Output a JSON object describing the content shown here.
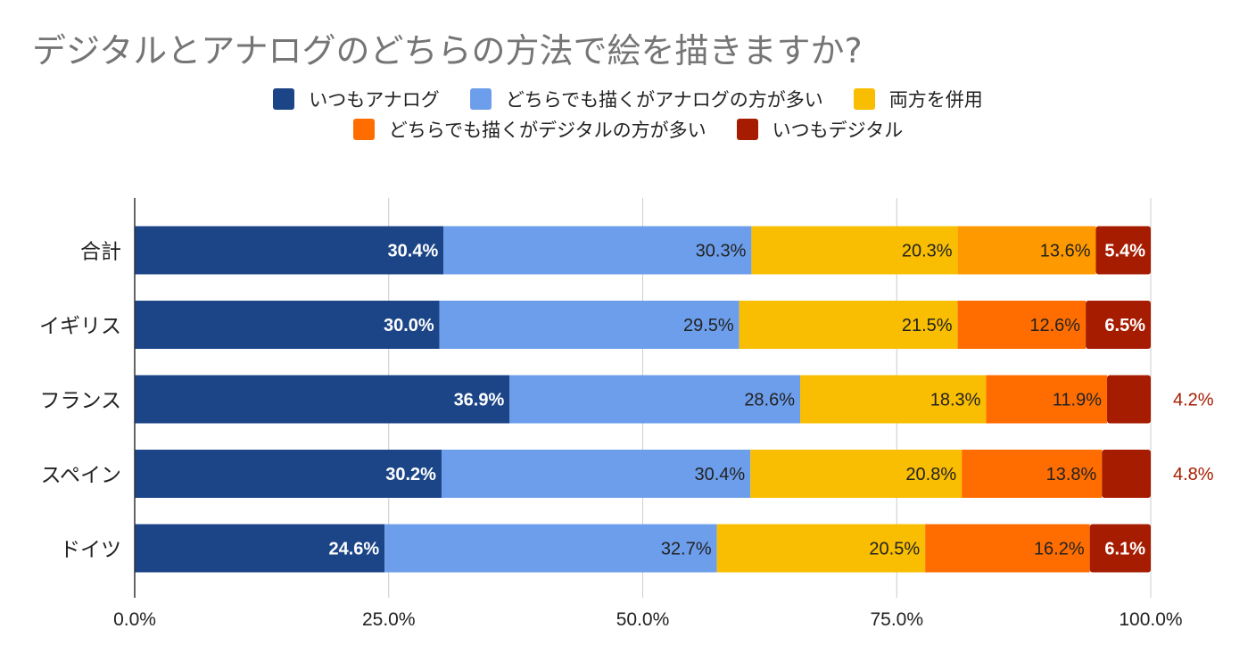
{
  "chart_data": {
    "type": "bar",
    "orientation": "horizontal",
    "stacked": true,
    "title": "デジタルとアナログのどちらの方法で絵を描きますか?",
    "categories": [
      "合計",
      "イギリス",
      "フランス",
      "スペイン",
      "ドイツ"
    ],
    "series": [
      {
        "name": "いつもアナログ",
        "color": "#1c4587",
        "label_color": "#ffffff",
        "values": [
          30.4,
          30.0,
          36.9,
          30.2,
          24.6
        ]
      },
      {
        "name": "どちらでも描くがアナログの方が多い",
        "color": "#6d9eeb",
        "label_color": "#222222",
        "values": [
          30.3,
          29.5,
          28.6,
          30.4,
          32.7
        ]
      },
      {
        "name": "両方を併用",
        "color": "#f9be02",
        "label_color": "#222222",
        "values": [
          20.3,
          21.5,
          18.3,
          20.8,
          20.5
        ]
      },
      {
        "name": "どちらでも描くがデジタルの方が多い",
        "color": "#ff6d01",
        "label_color": "#222222",
        "values": [
          13.6,
          12.6,
          11.9,
          13.8,
          16.2
        ]
      },
      {
        "name": "いつもデジタル",
        "color": "#a61c00",
        "label_color": "#ffffff",
        "values": [
          5.4,
          6.5,
          4.2,
          4.8,
          6.1
        ]
      }
    ],
    "labels": [
      [
        "30.4%",
        "30.3%",
        "20.3%",
        "13.6%",
        "5.4%"
      ],
      [
        "30.0%",
        "29.5%",
        "21.5%",
        "12.6%",
        "6.5%"
      ],
      [
        "36.9%",
        "28.6%",
        "18.3%",
        "11.9%",
        "4.2%"
      ],
      [
        "30.2%",
        "30.4%",
        "20.8%",
        "13.8%",
        "4.8%"
      ],
      [
        "24.6%",
        "32.7%",
        "20.5%",
        "16.2%",
        "6.1%"
      ]
    ],
    "outside_labels": [
      [
        false,
        false,
        false,
        false,
        false
      ],
      [
        false,
        false,
        false,
        false,
        false
      ],
      [
        false,
        false,
        false,
        false,
        true
      ],
      [
        false,
        false,
        false,
        false,
        true
      ],
      [
        false,
        false,
        false,
        false,
        false
      ]
    ],
    "segment_overrides": [
      {
        "category": 0,
        "series": 3,
        "color": "#ff9900"
      }
    ],
    "xlim": [
      0,
      100
    ],
    "xticks": [
      0,
      25,
      50,
      75,
      100
    ],
    "xtick_labels": [
      "0.0%",
      "25.0%",
      "50.0%",
      "75.0%",
      "100.0%"
    ],
    "xlabel": "",
    "ylabel": "",
    "grid": true,
    "legend": "top"
  }
}
